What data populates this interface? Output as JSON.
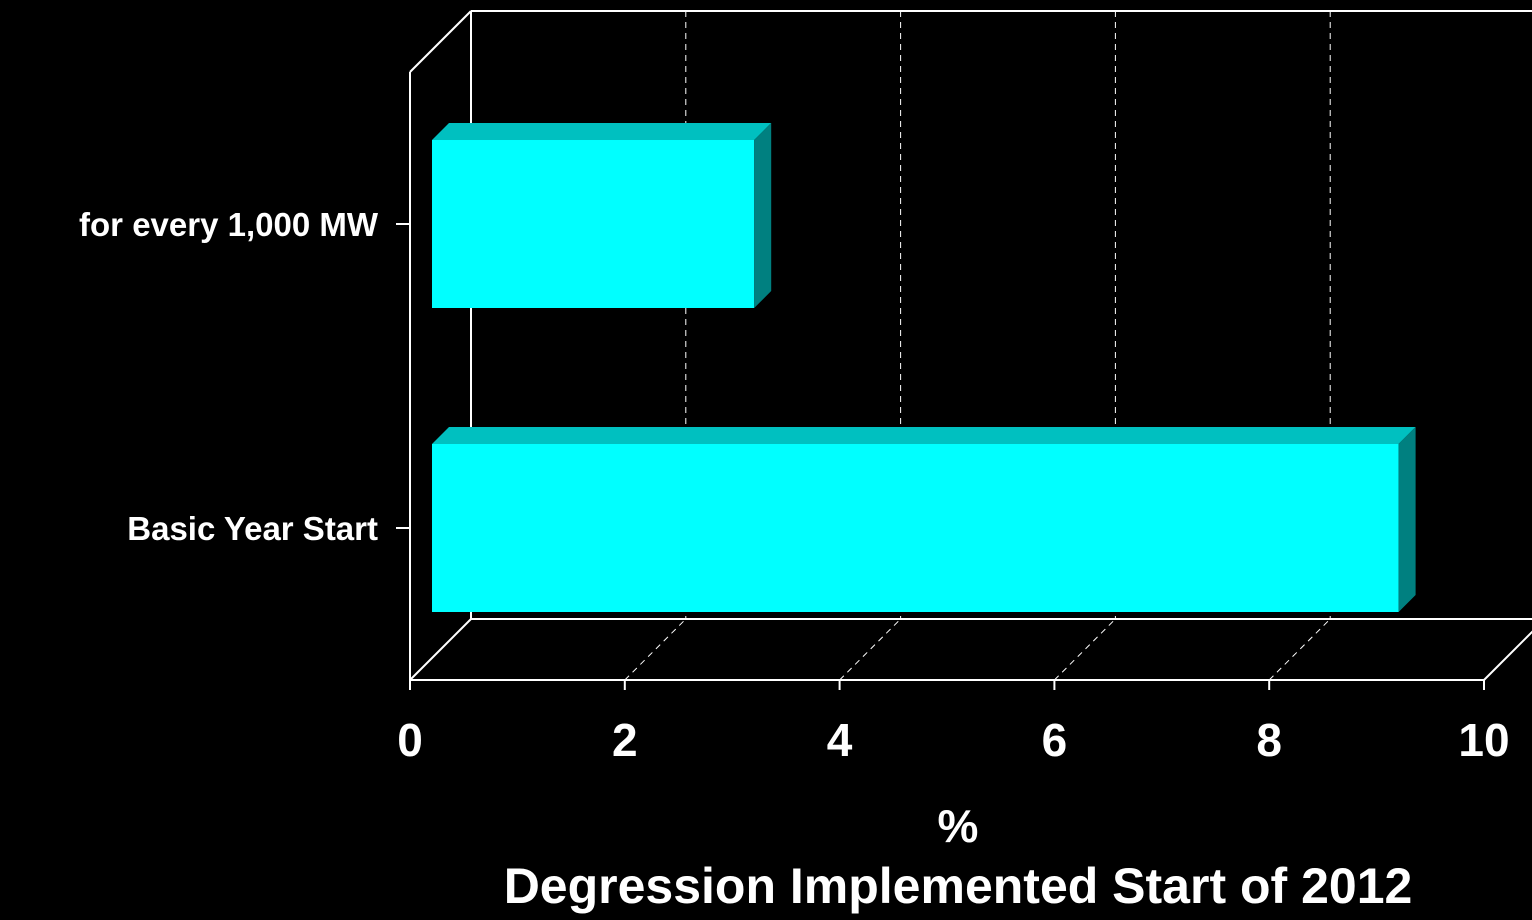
{
  "chart_data": {
    "type": "bar",
    "orientation": "horizontal",
    "three_d": true,
    "categories": [
      "for every 1,000 MW",
      "Basic Year Start"
    ],
    "values": [
      3,
      9
    ],
    "title": "Degression Implemented Start of 2012",
    "xlabel": "%",
    "ylabel": "",
    "xlim": [
      0,
      10
    ],
    "xticks": [
      "0",
      "2",
      "4",
      "6",
      "8",
      "10"
    ],
    "grid": true,
    "legend": "none",
    "colors": {
      "bar_front": "#00ffff",
      "bar_top": "#00c0c0",
      "bar_side": "#008080",
      "background": "#000000",
      "axis": "#ffffff"
    }
  }
}
